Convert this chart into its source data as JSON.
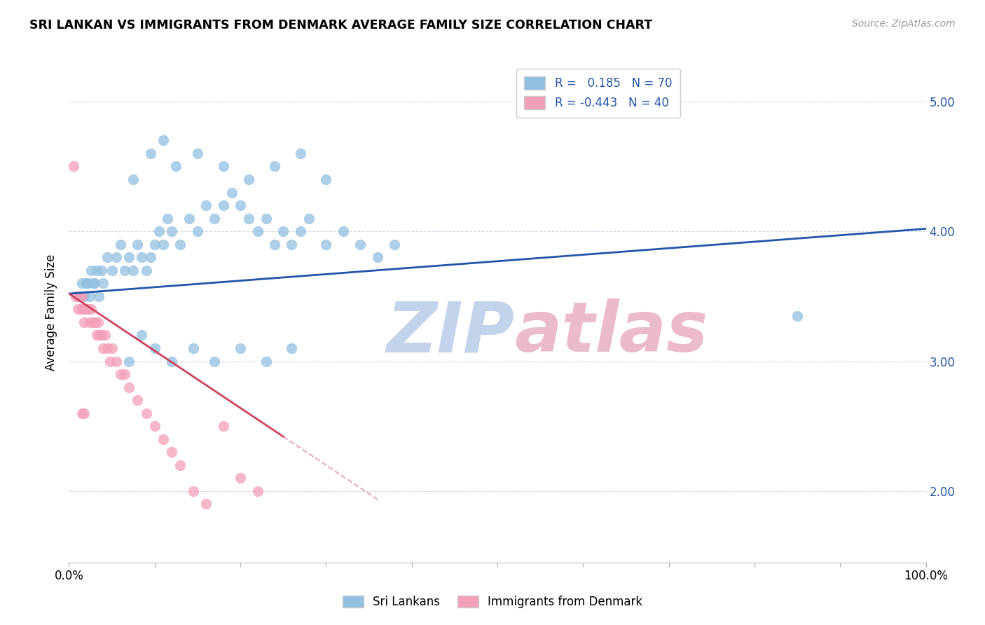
{
  "title": "SRI LANKAN VS IMMIGRANTS FROM DENMARK AVERAGE FAMILY SIZE CORRELATION CHART",
  "source": "Source: ZipAtlas.com",
  "ylabel": "Average Family Size",
  "yticks": [
    2.0,
    3.0,
    4.0,
    5.0
  ],
  "xlim": [
    0.0,
    100.0
  ],
  "ylim": [
    1.45,
    5.3
  ],
  "blue_R": 0.185,
  "blue_N": 70,
  "pink_R": -0.443,
  "pink_N": 40,
  "blue_color": "#92c0e0",
  "pink_color": "#f4a0b8",
  "blue_line_color": "#2255aa",
  "pink_line_color": "#d04060",
  "watermark_blue": "#b8cce8",
  "watermark_pink": "#e8b0c0",
  "background_color": "#ffffff",
  "grid_color": "#d0d8e8",
  "blue_line_start_y": 3.52,
  "blue_line_end_y": 4.02,
  "pink_line_start_y": 3.52,
  "pink_solid_end_x": 25.0,
  "pink_solid_end_y": 2.42,
  "pink_dash_end_x": 36.0,
  "pink_dash_end_y": 1.55,
  "blue_points_x": [
    1.2,
    1.5,
    1.8,
    2.0,
    2.2,
    2.4,
    2.6,
    2.8,
    3.0,
    3.2,
    3.5,
    3.8,
    4.0,
    4.5,
    5.0,
    5.5,
    6.0,
    6.5,
    7.0,
    7.5,
    8.0,
    8.5,
    9.0,
    9.5,
    10.0,
    10.5,
    11.0,
    11.5,
    12.0,
    13.0,
    14.0,
    15.0,
    16.0,
    17.0,
    18.0,
    19.0,
    20.0,
    21.0,
    22.0,
    23.0,
    24.0,
    25.0,
    26.0,
    27.0,
    28.0,
    30.0,
    32.0,
    34.0,
    36.0,
    38.0,
    7.5,
    9.5,
    11.0,
    12.5,
    15.0,
    18.0,
    21.0,
    24.0,
    27.0,
    30.0,
    7.0,
    8.5,
    10.0,
    12.0,
    14.5,
    17.0,
    20.0,
    23.0,
    26.0,
    85.0
  ],
  "blue_points_y": [
    3.5,
    3.6,
    3.5,
    3.6,
    3.6,
    3.5,
    3.7,
    3.6,
    3.6,
    3.7,
    3.5,
    3.7,
    3.6,
    3.8,
    3.7,
    3.8,
    3.9,
    3.7,
    3.8,
    3.7,
    3.9,
    3.8,
    3.7,
    3.8,
    3.9,
    4.0,
    3.9,
    4.1,
    4.0,
    3.9,
    4.1,
    4.0,
    4.2,
    4.1,
    4.2,
    4.3,
    4.2,
    4.1,
    4.0,
    4.1,
    3.9,
    4.0,
    3.9,
    4.0,
    4.1,
    3.9,
    4.0,
    3.9,
    3.8,
    3.9,
    4.4,
    4.6,
    4.7,
    4.5,
    4.6,
    4.5,
    4.4,
    4.5,
    4.6,
    4.4,
    3.0,
    3.2,
    3.1,
    3.0,
    3.1,
    3.0,
    3.1,
    3.0,
    3.1,
    3.35
  ],
  "pink_points_x": [
    0.8,
    1.0,
    1.2,
    1.4,
    1.5,
    1.6,
    1.8,
    2.0,
    2.2,
    2.4,
    2.6,
    2.8,
    3.0,
    3.2,
    3.4,
    3.6,
    3.8,
    4.0,
    4.2,
    4.5,
    4.8,
    5.0,
    5.5,
    6.0,
    6.5,
    7.0,
    8.0,
    9.0,
    10.0,
    11.0,
    12.0,
    13.0,
    14.5,
    16.0,
    18.0,
    20.0,
    22.0,
    1.5,
    1.8,
    0.5
  ],
  "pink_points_y": [
    3.5,
    3.4,
    3.5,
    3.4,
    3.5,
    3.4,
    3.3,
    3.4,
    3.4,
    3.3,
    3.4,
    3.3,
    3.3,
    3.2,
    3.3,
    3.2,
    3.2,
    3.1,
    3.2,
    3.1,
    3.0,
    3.1,
    3.0,
    2.9,
    2.9,
    2.8,
    2.7,
    2.6,
    2.5,
    2.4,
    2.3,
    2.2,
    2.0,
    1.9,
    2.5,
    2.1,
    2.0,
    2.6,
    2.6,
    4.5
  ]
}
